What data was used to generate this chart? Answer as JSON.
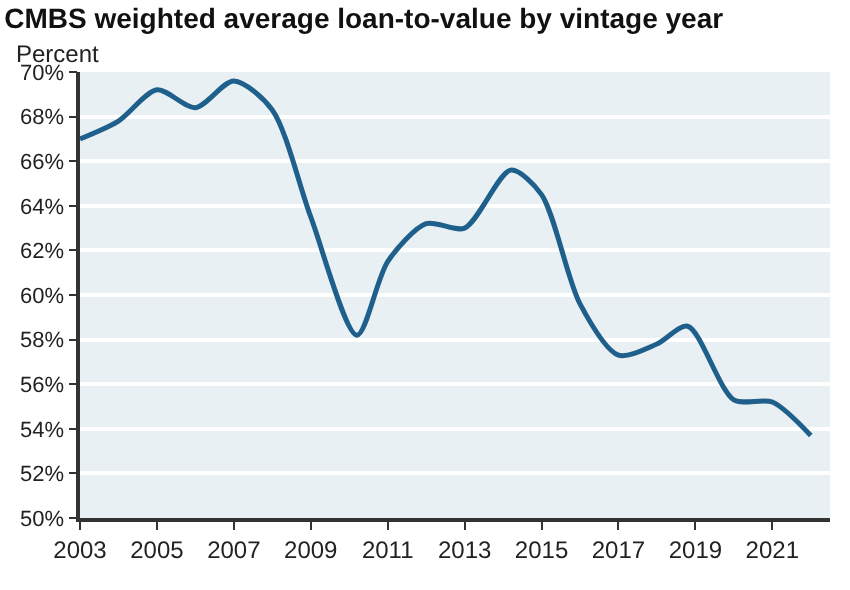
{
  "chart_data": {
    "type": "line",
    "title": "CMBS weighted average loan-to-value by vintage year",
    "ylabel": "Percent",
    "series": [
      {
        "color": "#1f5f8b",
        "x": [
          2003,
          2004,
          2005,
          2006,
          2007,
          2008,
          2009,
          2010.2,
          2011,
          2012,
          2013,
          2014.2,
          2015,
          2016,
          2017,
          2018,
          2018.8,
          2020,
          2021,
          2022
        ],
        "values": [
          67.0,
          67.8,
          69.2,
          68.4,
          69.6,
          68.3,
          63.5,
          58.2,
          61.5,
          63.2,
          63.0,
          65.6,
          64.5,
          59.6,
          57.3,
          57.8,
          58.6,
          55.3,
          55.2,
          53.7
        ]
      }
    ],
    "xlim": [
      2003,
      2022.5
    ],
    "xticks": [
      2003,
      2005,
      2007,
      2009,
      2011,
      2013,
      2015,
      2017,
      2019,
      2021
    ],
    "ylim": [
      50,
      70
    ],
    "yticks": [
      {
        "value": 50,
        "label": "50%"
      },
      {
        "value": 52,
        "label": "52%"
      },
      {
        "value": 54,
        "label": "54%"
      },
      {
        "value": 56,
        "label": "56%"
      },
      {
        "value": 58,
        "label": "58%"
      },
      {
        "value": 60,
        "label": "60%"
      },
      {
        "value": 62,
        "label": "62%"
      },
      {
        "value": 64,
        "label": "64%"
      },
      {
        "value": 66,
        "label": "66%"
      },
      {
        "value": 68,
        "label": "68%"
      },
      {
        "value": 70,
        "label": "70%"
      }
    ],
    "grid": "y",
    "legend": false,
    "marker": "none",
    "line_style": "solid"
  }
}
